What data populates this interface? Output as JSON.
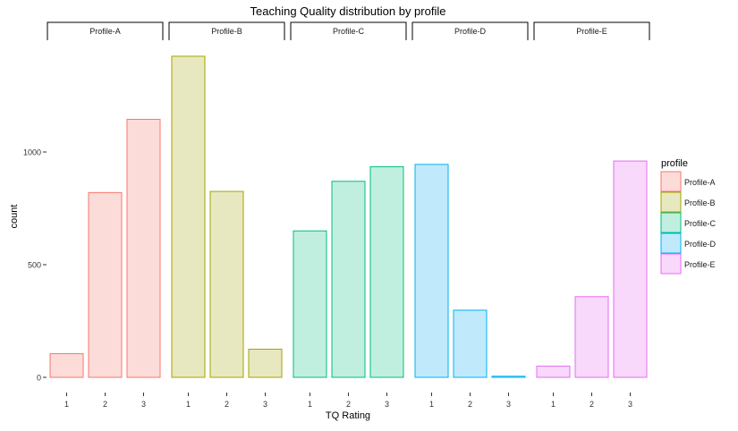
{
  "chart_data": {
    "type": "bar",
    "title": "Teaching Quality distribution by profile",
    "xlabel": "TQ Rating",
    "ylabel": "count",
    "categories": [
      "1",
      "2",
      "3"
    ],
    "ylim": [
      0,
      1450
    ],
    "yticks": [
      0,
      500,
      1000
    ],
    "grid": false,
    "legend": {
      "title": "profile",
      "position": "right"
    },
    "series": [
      {
        "name": "Profile-A",
        "values": [
          105,
          820,
          1145
        ],
        "stroke": "#F8766D",
        "fill": "#FCDCD9"
      },
      {
        "name": "Profile-B",
        "values": [
          1425,
          825,
          125
        ],
        "stroke": "#A3A500",
        "fill": "#E8E8C0"
      },
      {
        "name": "Profile-C",
        "values": [
          650,
          870,
          935
        ],
        "stroke": "#00BF7D",
        "fill": "#C0EFDF"
      },
      {
        "name": "Profile-D",
        "values": [
          945,
          298,
          5
        ],
        "stroke": "#00B0F6",
        "fill": "#C0EAFC"
      },
      {
        "name": "Profile-E",
        "values": [
          50,
          358,
          960
        ],
        "stroke": "#E76BF3",
        "fill": "#F8D8FB"
      }
    ]
  }
}
